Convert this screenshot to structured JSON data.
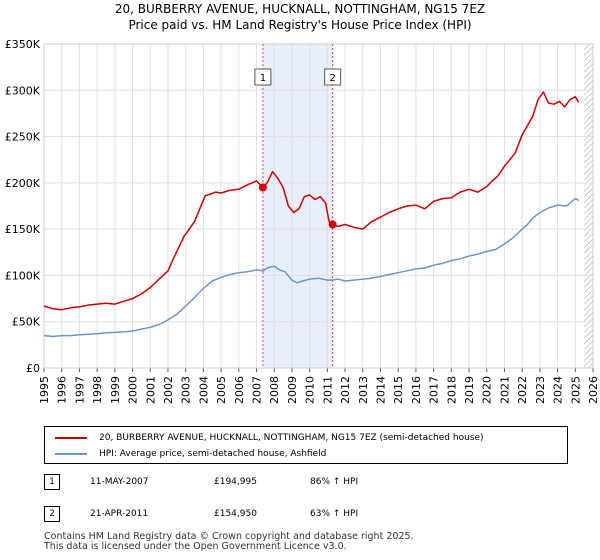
{
  "header": {
    "title": "20, BURBERRY AVENUE, HUCKNALL, NOTTINGHAM, NG15 7EZ",
    "subtitle": "Price paid vs. HM Land Registry's House Price Index (HPI)"
  },
  "chart_data": {
    "type": "line",
    "xlim": [
      1995,
      2026
    ],
    "ylim": [
      0,
      350000
    ],
    "yticks": [
      {
        "value": 0,
        "label": "£0"
      },
      {
        "value": 50000,
        "label": "£50K"
      },
      {
        "value": 100000,
        "label": "£100K"
      },
      {
        "value": 150000,
        "label": "£150K"
      },
      {
        "value": 200000,
        "label": "£200K"
      },
      {
        "value": 250000,
        "label": "£250K"
      },
      {
        "value": 300000,
        "label": "£300K"
      },
      {
        "value": 350000,
        "label": "£350K"
      }
    ],
    "xticks": [
      1995,
      1996,
      1997,
      1998,
      1999,
      2000,
      2001,
      2002,
      2003,
      2004,
      2005,
      2006,
      2007,
      2008,
      2009,
      2010,
      2011,
      2012,
      2013,
      2014,
      2015,
      2016,
      2017,
      2018,
      2019,
      2020,
      2021,
      2022,
      2023,
      2024,
      2025,
      2026
    ],
    "grid": true,
    "colors": {
      "property": "#cc0000",
      "hpi": "#6a96cc",
      "shade": "#e8eefa",
      "marker_line": "#dd4444",
      "hatch": "#999999"
    },
    "shaded_period": [
      2007.36,
      2011.3
    ],
    "hatched_after": 2025.5,
    "series": [
      {
        "name": "20, BURBERRY AVENUE, HUCKNALL, NOTTINGHAM, NG15 7EZ (semi-detached house)",
        "x": [
          1995,
          1995.5,
          1996,
          1996.5,
          1997,
          1997.5,
          1998,
          1998.5,
          1999,
          1999.5,
          2000,
          2000.5,
          2001,
          2001.5,
          2002,
          2002.3,
          2002.6,
          2002.9,
          2003.2,
          2003.5,
          2003.8,
          2004.1,
          2004.4,
          2004.7,
          2005,
          2005.5,
          2006,
          2006.5,
          2007,
          2007.36,
          2007.6,
          2007.9,
          2008.2,
          2008.5,
          2008.8,
          2009.1,
          2009.4,
          2009.7,
          2010,
          2010.3,
          2010.6,
          2010.9,
          2011.1,
          2011.3,
          2011.6,
          2012,
          2012.5,
          2013,
          2013.5,
          2014,
          2014.5,
          2015,
          2015.5,
          2016,
          2016.5,
          2017,
          2017.5,
          2018,
          2018.5,
          2019,
          2019.5,
          2020,
          2020.3,
          2020.6,
          2021,
          2021.3,
          2021.6,
          2022,
          2022.3,
          2022.6,
          2022.9,
          2023.2,
          2023.5,
          2023.8,
          2024.1,
          2024.4,
          2024.7,
          2025,
          2025.2
        ],
        "y": [
          67000,
          64000,
          63000,
          65000,
          66000,
          68000,
          69000,
          70000,
          69000,
          72000,
          75000,
          80000,
          87000,
          96000,
          105000,
          118000,
          130000,
          142000,
          150000,
          158000,
          172000,
          186000,
          188000,
          190000,
          189000,
          192000,
          193000,
          198000,
          202000,
          194995,
          200000,
          212000,
          205000,
          195000,
          175000,
          168000,
          172000,
          185000,
          187000,
          182000,
          185000,
          178000,
          158000,
          154950,
          153000,
          155000,
          152000,
          150000,
          158000,
          163000,
          168000,
          172000,
          175000,
          176000,
          172000,
          180000,
          183000,
          184000,
          190000,
          193000,
          190000,
          196000,
          202000,
          207000,
          218000,
          225000,
          232000,
          252000,
          262000,
          272000,
          290000,
          298000,
          286000,
          285000,
          288000,
          282000,
          290000,
          293000,
          287000
        ]
      },
      {
        "name": "HPI: Average price, semi-detached house, Ashfield",
        "x": [
          1995,
          1995.5,
          1996,
          1996.5,
          1997,
          1997.5,
          1998,
          1998.5,
          1999,
          1999.5,
          2000,
          2000.5,
          2001,
          2001.5,
          2002,
          2002.5,
          2003,
          2003.5,
          2004,
          2004.5,
          2005,
          2005.5,
          2006,
          2006.5,
          2007,
          2007.36,
          2007.6,
          2008,
          2008.3,
          2008.6,
          2009,
          2009.3,
          2009.6,
          2010,
          2010.5,
          2011,
          2011.3,
          2011.6,
          2012,
          2012.5,
          2013,
          2013.5,
          2014,
          2014.5,
          2015,
          2015.5,
          2016,
          2016.5,
          2017,
          2017.5,
          2018,
          2018.5,
          2019,
          2019.5,
          2020,
          2020.5,
          2021,
          2021.5,
          2022,
          2022.3,
          2022.6,
          2023,
          2023.5,
          2024,
          2024.5,
          2025,
          2025.2
        ],
        "y": [
          35000,
          34000,
          35000,
          35000,
          36000,
          36500,
          37000,
          38000,
          38500,
          39000,
          40000,
          42000,
          44000,
          47000,
          52000,
          58000,
          67000,
          76000,
          86000,
          94000,
          98000,
          101000,
          103000,
          104000,
          106000,
          104800,
          108000,
          110000,
          106000,
          104000,
          95000,
          92000,
          94000,
          96000,
          97000,
          95000,
          95000,
          96000,
          94000,
          95000,
          96000,
          97000,
          99000,
          101000,
          103000,
          105000,
          107000,
          108000,
          111000,
          113000,
          116000,
          118000,
          121000,
          123000,
          126000,
          128000,
          134000,
          141000,
          150000,
          155000,
          162000,
          168000,
          173000,
          176000,
          175000,
          183000,
          181000
        ]
      }
    ],
    "annotations": [
      {
        "id": "1",
        "x": 2007.36,
        "y": 194995
      },
      {
        "id": "2",
        "x": 2011.3,
        "y": 154950
      }
    ]
  },
  "legend": {
    "property_label": "20, BURBERRY AVENUE, HUCKNALL, NOTTINGHAM, NG15 7EZ (semi-detached house)",
    "hpi_label": "HPI: Average price, semi-detached house, Ashfield"
  },
  "transactions": [
    {
      "id": "1",
      "date": "11-MAY-2007",
      "price": "£194,995",
      "hpi": "86% ↑ HPI"
    },
    {
      "id": "2",
      "date": "21-APR-2011",
      "price": "£154,950",
      "hpi": "63% ↑ HPI"
    }
  ],
  "footer": {
    "line1": "Contains HM Land Registry data © Crown copyright and database right 2025.",
    "line2": "This data is licensed under the Open Government Licence v3.0."
  }
}
